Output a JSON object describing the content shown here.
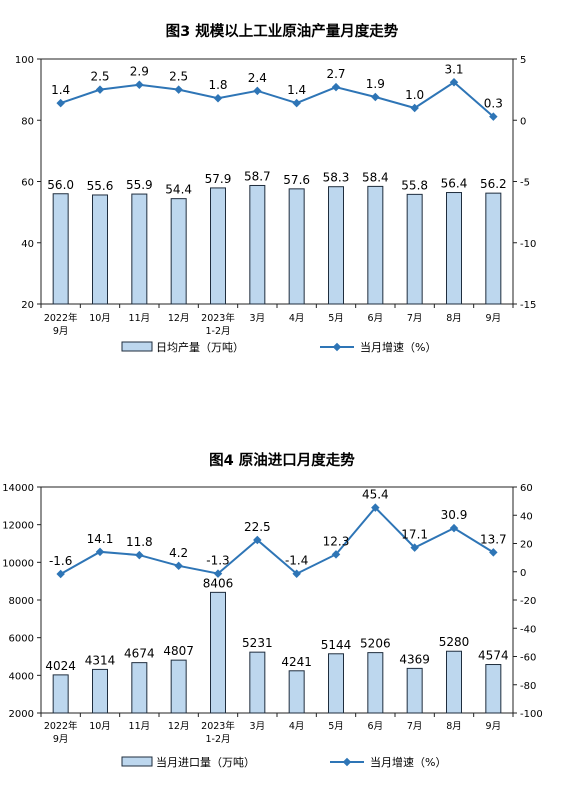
{
  "chart_data": [
    {
      "type": "bar",
      "title": "图3  规模以上工业原油产量月度走势",
      "categories": [
        [
          "2022年",
          "9月"
        ],
        [
          "10月"
        ],
        [
          "11月"
        ],
        [
          "12月"
        ],
        [
          "2023年",
          "1-2月"
        ],
        [
          "3月"
        ],
        [
          "4月"
        ],
        [
          "5月"
        ],
        [
          "6月"
        ],
        [
          "7月"
        ],
        [
          "8月"
        ],
        [
          "9月"
        ]
      ],
      "bar_series": {
        "name": "日均产量（万吨）",
        "values": [
          56.0,
          55.6,
          55.9,
          54.4,
          57.9,
          58.7,
          57.6,
          58.3,
          58.4,
          55.8,
          56.4,
          56.2
        ],
        "labels": [
          "56.0",
          "55.6",
          "55.9",
          "54.4",
          "57.9",
          "58.7",
          "57.6",
          "58.3",
          "58.4",
          "55.8",
          "56.4",
          "56.2"
        ]
      },
      "line_series": {
        "name": "当月增速（%）",
        "values": [
          1.4,
          2.5,
          2.9,
          2.5,
          1.8,
          2.4,
          1.4,
          2.7,
          1.9,
          1.0,
          3.1,
          0.3
        ],
        "labels": [
          "1.4",
          "2.5",
          "2.9",
          "2.5",
          "1.8",
          "2.4",
          "1.4",
          "2.7",
          "1.9",
          "1.0",
          "3.1",
          "0.3"
        ]
      },
      "left_axis": {
        "min": 20,
        "max": 100,
        "ticks": [
          "20",
          "40",
          "60",
          "80",
          "100"
        ]
      },
      "right_axis": {
        "min": -15,
        "max": 5,
        "ticks": [
          "-15",
          "-10",
          "-5",
          "0",
          "5"
        ]
      },
      "legend_position": "bottom",
      "grid": false,
      "colors": {
        "bar_fill": "#bdd7ee",
        "bar_stroke": "#1f2d3d",
        "line": "#2e75b6"
      }
    },
    {
      "type": "bar",
      "title": "图4  原油进口月度走势",
      "categories": [
        [
          "2022年",
          "9月"
        ],
        [
          "10月"
        ],
        [
          "11月"
        ],
        [
          "12月"
        ],
        [
          "2023年",
          "1-2月"
        ],
        [
          "3月"
        ],
        [
          "4月"
        ],
        [
          "5月"
        ],
        [
          "6月"
        ],
        [
          "7月"
        ],
        [
          "8月"
        ],
        [
          "9月"
        ]
      ],
      "bar_series": {
        "name": "当月进口量（万吨）",
        "values": [
          4024,
          4314,
          4674,
          4807,
          8406,
          5231,
          4241,
          5144,
          5206,
          4369,
          5280,
          4574
        ],
        "labels": [
          "4024",
          "4314",
          "4674",
          "4807",
          "8406",
          "5231",
          "4241",
          "5144",
          "5206",
          "4369",
          "5280",
          "4574"
        ]
      },
      "line_series": {
        "name": "当月增速（%）",
        "values": [
          -1.6,
          14.1,
          11.8,
          4.2,
          -1.3,
          22.5,
          -1.4,
          12.3,
          45.4,
          17.1,
          30.9,
          13.7
        ],
        "labels": [
          "-1.6",
          "14.1",
          "11.8",
          "4.2",
          "-1.3",
          "22.5",
          "-1.4",
          "12.3",
          "45.4",
          "17.1",
          "30.9",
          "13.7"
        ]
      },
      "left_axis": {
        "min": 2000,
        "max": 14000,
        "ticks": [
          "2000",
          "4000",
          "6000",
          "8000",
          "10000",
          "12000",
          "14000"
        ]
      },
      "right_axis": {
        "min": -100,
        "max": 60,
        "ticks": [
          "-100",
          "-80",
          "-60",
          "-40",
          "-20",
          "0",
          "20",
          "40",
          "60"
        ]
      },
      "legend_position": "bottom",
      "grid": false,
      "colors": {
        "bar_fill": "#bdd7ee",
        "bar_stroke": "#1f2d3d",
        "line": "#2e75b6"
      }
    }
  ]
}
